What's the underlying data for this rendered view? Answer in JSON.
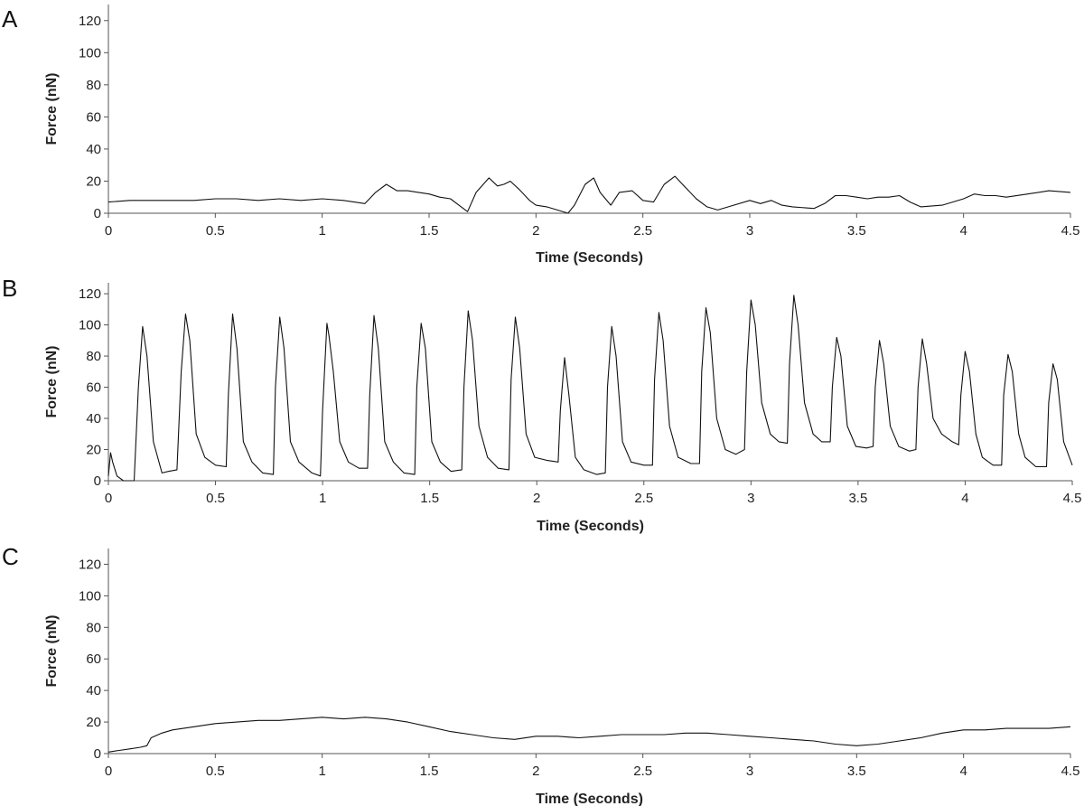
{
  "chart_data": [
    {
      "type": "line",
      "panel": "A",
      "xlabel": "Time (Seconds)",
      "ylabel": "Force (nN)",
      "xlim": [
        0,
        4.5
      ],
      "ylim": [
        0,
        130
      ],
      "x_ticks": [
        0,
        0.5,
        1,
        1.5,
        2,
        2.5,
        3,
        3.5,
        4,
        4.5
      ],
      "y_ticks": [
        0,
        20,
        40,
        60,
        80,
        100,
        120
      ],
      "x": [
        0,
        0.1,
        0.2,
        0.3,
        0.4,
        0.5,
        0.6,
        0.7,
        0.8,
        0.9,
        1.0,
        1.1,
        1.15,
        1.2,
        1.25,
        1.3,
        1.35,
        1.4,
        1.45,
        1.5,
        1.55,
        1.6,
        1.65,
        1.68,
        1.72,
        1.78,
        1.82,
        1.85,
        1.88,
        1.92,
        1.97,
        2.0,
        2.05,
        2.1,
        2.15,
        2.18,
        2.23,
        2.27,
        2.3,
        2.35,
        2.39,
        2.45,
        2.5,
        2.55,
        2.6,
        2.65,
        2.7,
        2.75,
        2.8,
        2.85,
        2.9,
        3.0,
        3.05,
        3.1,
        3.15,
        3.2,
        3.3,
        3.35,
        3.4,
        3.45,
        3.5,
        3.55,
        3.6,
        3.65,
        3.7,
        3.75,
        3.8,
        3.9,
        4.0,
        4.05,
        4.1,
        4.15,
        4.2,
        4.3,
        4.4,
        4.5
      ],
      "y": [
        7,
        8,
        8,
        8,
        8,
        9,
        9,
        8,
        9,
        8,
        9,
        8,
        7,
        6,
        13,
        18,
        14,
        14,
        13,
        12,
        10,
        9,
        4,
        1,
        13,
        22,
        17,
        18,
        20,
        15,
        8,
        5,
        4,
        2,
        0,
        5,
        18,
        22,
        13,
        5,
        13,
        14,
        8,
        7,
        18,
        23,
        16,
        9,
        4,
        2,
        4,
        8,
        6,
        8,
        5,
        4,
        3,
        6,
        11,
        11,
        10,
        9,
        10,
        10,
        11,
        7,
        4,
        5,
        9,
        12,
        11,
        11,
        10,
        12,
        14,
        13
      ]
    },
    {
      "type": "line",
      "panel": "B",
      "xlabel": "Time (Seconds)",
      "ylabel": "Force (nN)",
      "xlim": [
        0,
        4.5
      ],
      "ylim": [
        0,
        127
      ],
      "x_ticks": [
        0,
        0.5,
        1,
        1.5,
        2,
        2.5,
        3,
        3.5,
        4,
        4.5
      ],
      "y_ticks": [
        0,
        20,
        40,
        60,
        80,
        100,
        120
      ],
      "x": [
        0,
        0.01,
        0.02,
        0.04,
        0.07,
        0.1,
        0.12,
        0.14,
        0.16,
        0.18,
        0.21,
        0.25,
        0.28,
        0.32,
        0.34,
        0.36,
        0.38,
        0.41,
        0.45,
        0.5,
        0.55,
        0.56,
        0.58,
        0.6,
        0.63,
        0.67,
        0.72,
        0.77,
        0.78,
        0.8,
        0.82,
        0.85,
        0.89,
        0.95,
        0.99,
        1.0,
        1.02,
        1.03,
        1.05,
        1.08,
        1.12,
        1.17,
        1.21,
        1.22,
        1.24,
        1.26,
        1.29,
        1.33,
        1.38,
        1.43,
        1.44,
        1.46,
        1.48,
        1.51,
        1.55,
        1.6,
        1.65,
        1.66,
        1.68,
        1.7,
        1.73,
        1.77,
        1.82,
        1.87,
        1.88,
        1.9,
        1.92,
        1.95,
        1.99,
        2.05,
        2.1,
        2.11,
        2.13,
        2.15,
        2.18,
        2.22,
        2.28,
        2.32,
        2.33,
        2.35,
        2.37,
        2.4,
        2.44,
        2.5,
        2.54,
        2.55,
        2.57,
        2.59,
        2.62,
        2.66,
        2.72,
        2.76,
        2.77,
        2.79,
        2.81,
        2.84,
        2.88,
        2.93,
        2.97,
        2.98,
        3.0,
        3.02,
        3.05,
        3.09,
        3.13,
        3.17,
        3.18,
        3.2,
        3.22,
        3.25,
        3.29,
        3.33,
        3.37,
        3.38,
        3.4,
        3.42,
        3.45,
        3.49,
        3.54,
        3.57,
        3.58,
        3.6,
        3.62,
        3.65,
        3.69,
        3.74,
        3.77,
        3.78,
        3.8,
        3.82,
        3.85,
        3.89,
        3.94,
        3.97,
        3.98,
        4.0,
        4.02,
        4.05,
        4.08,
        4.13,
        4.17,
        4.18,
        4.2,
        4.22,
        4.25,
        4.28,
        4.33,
        4.38,
        4.39,
        4.41,
        4.43,
        4.46,
        4.5
      ],
      "y": [
        3,
        18,
        12,
        3,
        0,
        0,
        0,
        60,
        99,
        80,
        25,
        5,
        6,
        7,
        70,
        107,
        90,
        30,
        15,
        10,
        9,
        55,
        107,
        85,
        25,
        12,
        5,
        4,
        60,
        105,
        85,
        25,
        12,
        5,
        3,
        45,
        101,
        93,
        70,
        25,
        12,
        8,
        8,
        55,
        106,
        85,
        25,
        12,
        5,
        4,
        60,
        101,
        85,
        25,
        12,
        6,
        7,
        60,
        109,
        90,
        35,
        15,
        8,
        7,
        65,
        105,
        85,
        30,
        15,
        13,
        12,
        45,
        79,
        55,
        15,
        7,
        4,
        5,
        60,
        99,
        80,
        25,
        12,
        10,
        10,
        65,
        108,
        90,
        35,
        15,
        11,
        11,
        70,
        111,
        95,
        40,
        20,
        17,
        20,
        70,
        116,
        100,
        50,
        30,
        25,
        24,
        75,
        119,
        100,
        50,
        30,
        25,
        25,
        60,
        92,
        80,
        35,
        22,
        21,
        22,
        60,
        90,
        75,
        35,
        22,
        19,
        20,
        60,
        91,
        75,
        40,
        30,
        25,
        23,
        55,
        83,
        70,
        30,
        15,
        10,
        10,
        55,
        81,
        70,
        30,
        15,
        9,
        9,
        50,
        75,
        65,
        25,
        10
      ]
    },
    {
      "type": "line",
      "panel": "C",
      "xlabel": "Time (Seconds)",
      "ylabel": "Force (nN)",
      "xlim": [
        0,
        4.5
      ],
      "ylim": [
        0,
        130
      ],
      "x_ticks": [
        0,
        0.5,
        1,
        1.5,
        2,
        2.5,
        3,
        3.5,
        4,
        4.5
      ],
      "y_ticks": [
        0,
        20,
        40,
        60,
        80,
        100,
        120
      ],
      "x": [
        0,
        0.05,
        0.1,
        0.15,
        0.18,
        0.2,
        0.25,
        0.3,
        0.4,
        0.5,
        0.6,
        0.7,
        0.8,
        0.9,
        1.0,
        1.1,
        1.2,
        1.3,
        1.4,
        1.5,
        1.6,
        1.7,
        1.8,
        1.9,
        2.0,
        2.1,
        2.2,
        2.3,
        2.4,
        2.5,
        2.6,
        2.7,
        2.8,
        2.9,
        3.0,
        3.1,
        3.2,
        3.3,
        3.4,
        3.5,
        3.6,
        3.7,
        3.8,
        3.9,
        4.0,
        4.1,
        4.2,
        4.3,
        4.4,
        4.5
      ],
      "y": [
        1,
        2,
        3,
        4,
        5,
        10,
        13,
        15,
        17,
        19,
        20,
        21,
        21,
        22,
        23,
        22,
        23,
        22,
        20,
        17,
        14,
        12,
        10,
        9,
        11,
        11,
        10,
        11,
        12,
        12,
        12,
        13,
        13,
        12,
        11,
        10,
        9,
        8,
        6,
        5,
        6,
        8,
        10,
        13,
        15,
        15,
        16,
        16,
        16,
        17
      ]
    }
  ]
}
